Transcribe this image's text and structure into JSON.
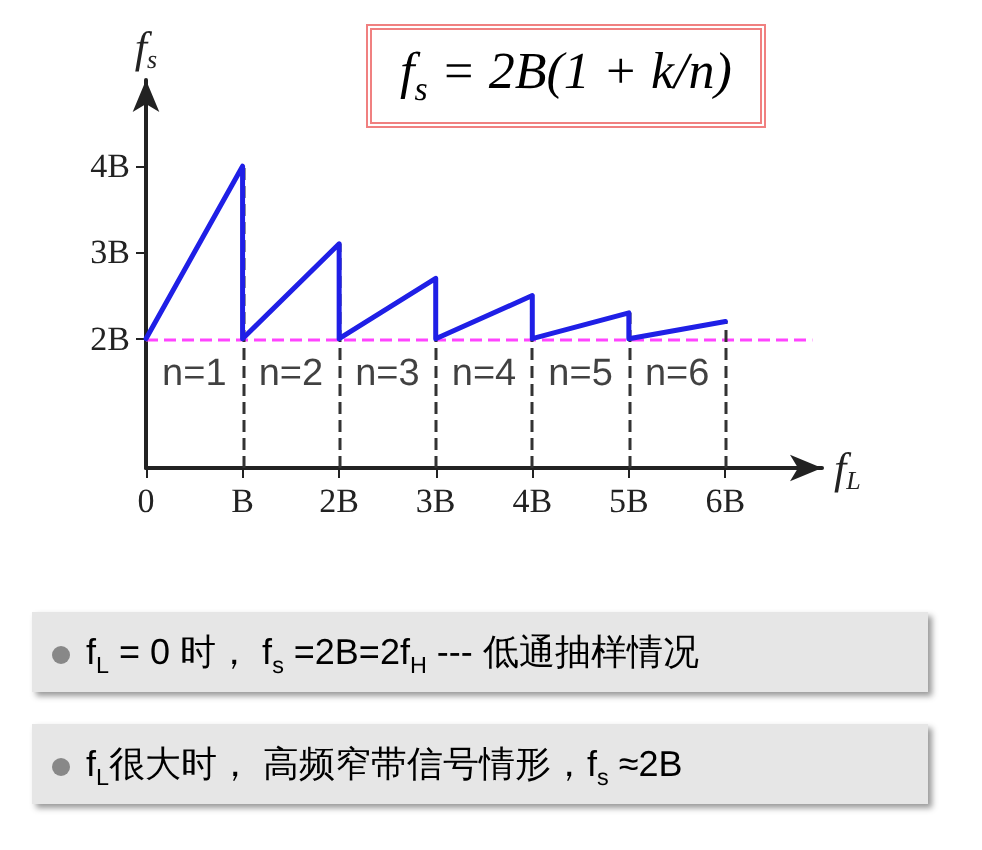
{
  "chart_data": {
    "type": "line",
    "title": "f$_{s}$ = 2B(1 + k/n)",
    "xlabel": "f$_{L}$",
    "ylabel": "f$_{s}$",
    "x": [
      0,
      1,
      1,
      2,
      2,
      3,
      3,
      4,
      4,
      5,
      5,
      6
    ],
    "series": [
      {
        "color": "#1f1fe6",
        "values": [
          2,
          4,
          2,
          3.1,
          2,
          2.7,
          2,
          2.5,
          2,
          2.3,
          2,
          2.2
        ]
      }
    ],
    "xlim": [
      0,
      7
    ],
    "xticks": [
      0,
      {
        "value": 1,
        "label": "B"
      },
      {
        "value": 2,
        "label": "2B"
      },
      {
        "value": 3,
        "label": "3B"
      },
      {
        "value": 4,
        "label": "4B"
      },
      {
        "value": 5,
        "label": "5B"
      },
      {
        "value": 6,
        "label": "6B"
      }
    ],
    "ylim": [
      0.5,
      5
    ],
    "yticks": [
      {
        "value": 2,
        "label": "2B"
      },
      {
        "value": 3,
        "label": "3B"
      },
      {
        "value": 4,
        "label": "4B"
      }
    ],
    "ref_lines": [
      {
        "axis": "y",
        "value": 2,
        "color": "#ff44ff",
        "line_style": "dashed"
      },
      {
        "axis": "x",
        "value": 1,
        "color": "#333333",
        "line_style": "dashed"
      },
      {
        "axis": "x",
        "value": 2,
        "color": "#333333",
        "line_style": "dashed"
      },
      {
        "axis": "x",
        "value": 3,
        "color": "#333333",
        "line_style": "dashed"
      },
      {
        "axis": "x",
        "value": 4,
        "color": "#333333",
        "line_style": "dashed"
      },
      {
        "axis": "x",
        "value": 5,
        "color": "#333333",
        "line_style": "dashed"
      },
      {
        "axis": "x",
        "value": 6,
        "color": "#333333",
        "line_style": "dashed"
      }
    ],
    "annotations": [
      "n=1",
      "n=2",
      "n=3",
      "n=4",
      "n=5",
      "n=6",
      "f$_{L}$ = 0 时， f$_{s}$ =2B=2f$_{H}$ --- 低通抽样情况",
      "f$_{L}$很大时， 高频窄带信号情形，f$_{s}$ ≈2B"
    ],
    "grid": false,
    "marker": "none",
    "line_style": "solid"
  }
}
